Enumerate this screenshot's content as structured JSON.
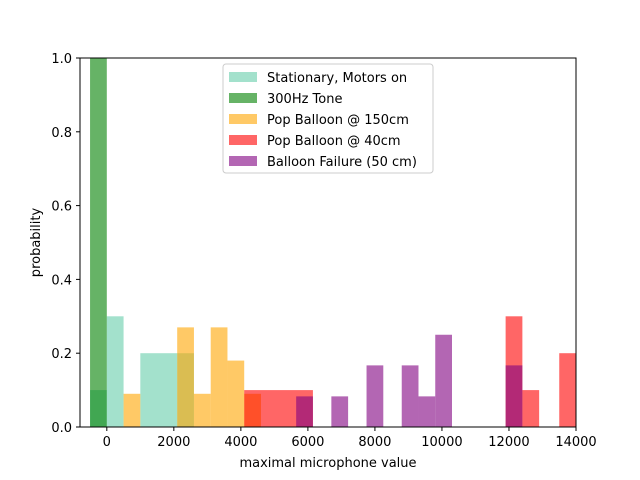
{
  "chart_data": {
    "type": "bar",
    "subtype": "overlaid-histogram",
    "title": "",
    "xlabel": "maximal microphone value",
    "ylabel": "probability",
    "xlim": [
      -800,
      14000
    ],
    "ylim": [
      0,
      1.0
    ],
    "xticks": [
      "0",
      "2000",
      "4000",
      "6000",
      "8000",
      "10000",
      "12000",
      "14000"
    ],
    "yticks": [
      "0.0",
      "0.2",
      "0.4",
      "0.6",
      "0.8",
      "1.0"
    ],
    "grid": false,
    "legend_position": "upper center",
    "series": [
      {
        "name": "Stationary, Motors on",
        "color": "#66cdaa",
        "opacity": 0.6,
        "bins": [
          {
            "x0": -500,
            "x1": 0,
            "value": 0.1
          },
          {
            "x0": 0,
            "x1": 500,
            "value": 0.3
          },
          {
            "x0": 1000,
            "x1": 2100,
            "value": 0.2
          },
          {
            "x0": 2100,
            "x1": 2600,
            "value": 0.2
          }
        ]
      },
      {
        "name": "300Hz Tone",
        "color": "#008000",
        "opacity": 0.6,
        "bins": [
          {
            "x0": -500,
            "x1": 0,
            "value": 1.0
          }
        ]
      },
      {
        "name": "Pop Balloon @ 150cm",
        "color": "#ffa500",
        "opacity": 0.6,
        "bins": [
          {
            "x0": 500,
            "x1": 1000,
            "value": 0.09
          },
          {
            "x0": 2100,
            "x1": 2600,
            "value": 0.27
          },
          {
            "x0": 2600,
            "x1": 3100,
            "value": 0.09
          },
          {
            "x0": 3100,
            "x1": 3600,
            "value": 0.27
          },
          {
            "x0": 3600,
            "x1": 4100,
            "value": 0.18
          },
          {
            "x0": 4100,
            "x1": 4600,
            "value": 0.09
          }
        ]
      },
      {
        "name": "Pop Balloon @ 40cm",
        "color": "#ff0000",
        "opacity": 0.6,
        "bins": [
          {
            "x0": 4100,
            "x1": 6150,
            "value": 0.1
          },
          {
            "x0": 11900,
            "x1": 12400,
            "value": 0.3
          },
          {
            "x0": 12400,
            "x1": 12900,
            "value": 0.1
          },
          {
            "x0": 13500,
            "x1": 14000,
            "value": 0.2
          }
        ]
      },
      {
        "name": "Balloon Failure (50 cm)",
        "color": "#800080",
        "opacity": 0.6,
        "bins": [
          {
            "x0": 5650,
            "x1": 6150,
            "value": 0.083
          },
          {
            "x0": 6700,
            "x1": 7200,
            "value": 0.083
          },
          {
            "x0": 7750,
            "x1": 8250,
            "value": 0.167
          },
          {
            "x0": 8800,
            "x1": 9300,
            "value": 0.167
          },
          {
            "x0": 9300,
            "x1": 9800,
            "value": 0.083
          },
          {
            "x0": 9800,
            "x1": 10300,
            "value": 0.25
          },
          {
            "x0": 11900,
            "x1": 12400,
            "value": 0.167
          }
        ]
      }
    ]
  }
}
